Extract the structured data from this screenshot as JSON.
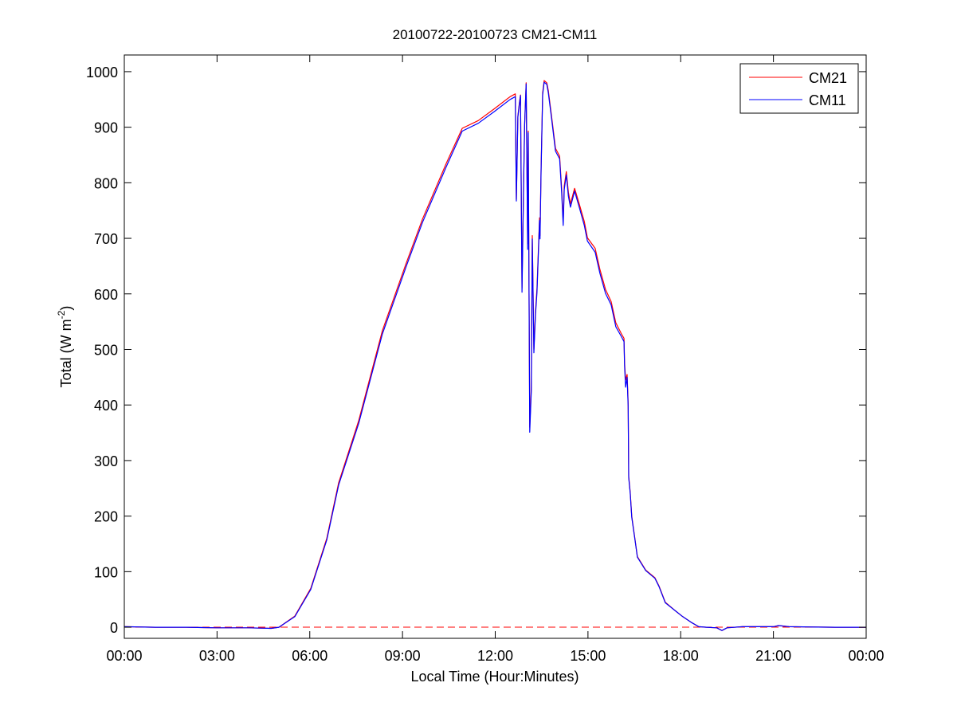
{
  "chart_data": {
    "type": "line",
    "title": "20100722-20100723 CM21-CM11",
    "xlabel": "Local Time (Hour:Minutes)",
    "ylabel_main": "Total (W m",
    "ylabel_sup": "-2",
    "ylabel_end": ")",
    "xlim": [
      "00:00",
      "24:00"
    ],
    "ylim": [
      -20,
      1030
    ],
    "x_ticks": [
      "00:00",
      "03:00",
      "06:00",
      "09:00",
      "12:00",
      "15:00",
      "18:00",
      "21:00",
      "00:00"
    ],
    "y_ticks": [
      0,
      100,
      200,
      300,
      400,
      500,
      600,
      700,
      800,
      900,
      1000
    ],
    "grid": false,
    "legend_position": "top-right",
    "reference_line": {
      "y": 0,
      "color": "#ff0000",
      "style": "dashed"
    },
    "x": [
      "00:00",
      "01:00",
      "02:00",
      "03:00",
      "04:00",
      "04:45",
      "05:00",
      "05:31",
      "06:02",
      "06:33",
      "06:56",
      "07:35",
      "08:21",
      "09:07",
      "09:39",
      "10:25",
      "10:56",
      "11:27",
      "11:58",
      "12:29",
      "12:39",
      "12:41",
      "12:44",
      "12:47",
      "12:49",
      "12:52",
      "12:55",
      "12:57",
      "13:00",
      "13:03",
      "13:04",
      "13:07",
      "13:10",
      "13:12",
      "13:15",
      "13:18",
      "13:21",
      "13:26",
      "13:27",
      "13:29",
      "13:32",
      "13:35",
      "13:40",
      "13:43",
      "13:49",
      "13:57",
      "14:05",
      "14:09",
      "14:12",
      "14:14",
      "14:18",
      "14:22",
      "14:26",
      "14:34",
      "14:43",
      "14:53",
      "14:59",
      "15:14",
      "15:23",
      "15:34",
      "15:45",
      "15:54",
      "16:05",
      "16:10",
      "16:11",
      "16:13",
      "16:16",
      "16:18",
      "16:19",
      "16:22",
      "16:25",
      "16:31",
      "16:36",
      "16:52",
      "17:10",
      "17:18",
      "17:30",
      "17:49",
      "18:04",
      "18:20",
      "18:35",
      "18:50",
      "19:10",
      "19:20",
      "19:30",
      "20:00",
      "21:00",
      "21:10",
      "21:30",
      "23:00",
      "23:59"
    ],
    "series": [
      {
        "name": "CM21",
        "color": "#ff0000",
        "values": [
          1,
          0,
          0,
          -1,
          -1,
          -2,
          0,
          20,
          70,
          160,
          260,
          372,
          534,
          655,
          735,
          835,
          898,
          912,
          933,
          955,
          960,
          770,
          920,
          945,
          958,
          610,
          800,
          906,
          980,
          690,
          893,
          360,
          432,
          705,
          500,
          565,
          610,
          737,
          705,
          822,
          962,
          984,
          980,
          966,
          922,
          862,
          848,
          788,
          730,
          794,
          820,
          783,
          762,
          790,
          762,
          730,
          701,
          682,
          645,
          608,
          586,
          548,
          528,
          520,
          476,
          445,
          455,
          404,
          272,
          243,
          200,
          160,
          127,
          103,
          89,
          74,
          45,
          30,
          19,
          9,
          1,
          0,
          -1,
          -6,
          -1,
          1,
          1,
          3,
          1,
          0,
          0
        ]
      },
      {
        "name": "CM11",
        "color": "#0000ff",
        "values": [
          1,
          0,
          0,
          -1,
          -1,
          -2,
          0,
          19,
          68,
          157,
          256,
          367,
          528,
          649,
          729,
          829,
          893,
          907,
          928,
          950,
          955,
          767,
          918,
          943,
          957,
          603,
          795,
          904,
          978,
          680,
          890,
          351,
          427,
          699,
          494,
          560,
          603,
          732,
          699,
          818,
          958,
          981,
          977,
          962,
          918,
          857,
          843,
          781,
          723,
          788,
          814,
          776,
          756,
          785,
          756,
          723,
          695,
          675,
          638,
          601,
          580,
          541,
          523,
          514,
          470,
          432,
          450,
          398,
          269,
          241,
          198,
          159,
          126,
          102,
          88,
          73,
          44,
          30,
          19,
          9,
          1,
          0,
          -1,
          -6,
          -1,
          1,
          1,
          3,
          1,
          0,
          0
        ]
      }
    ]
  }
}
